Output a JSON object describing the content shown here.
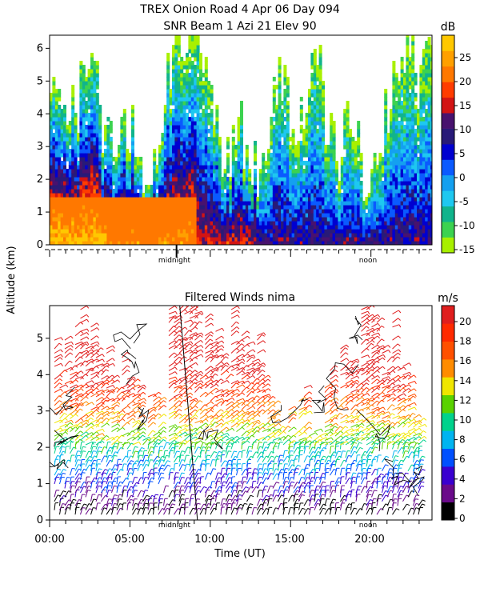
{
  "header": {
    "line1": "TREX Onion Road   4 Apr 06 Day 094",
    "line2": "SNR Beam 1 Azi  21 Elev 90"
  },
  "shared": {
    "ylabel": "Altitude (km)",
    "xlabel": "Time (UT)",
    "x_tick_labels": [
      "00:00",
      "05:00",
      "10:00",
      "15:00",
      "20:00"
    ],
    "marker_midnight": "midnight",
    "marker_noon": "noon"
  },
  "chart_data": [
    {
      "type": "heatmap",
      "title": "SNR Beam 1 Azi  21 Elev 90",
      "xlabel": "Time (UT)",
      "ylabel": "Altitude (km)",
      "xlim_hours": [
        0,
        23.8
      ],
      "ylim_km": [
        0,
        6.4
      ],
      "y_ticks": [
        "0",
        "1",
        "2",
        "3",
        "4",
        "5",
        "6"
      ],
      "colorbar": {
        "unit": "dB",
        "ticks": [
          "25",
          "20",
          "15",
          "10",
          "5",
          "0",
          "-5",
          "-10",
          "-15"
        ],
        "colors": [
          "#a8f000",
          "#3cd250",
          "#10b48c",
          "#1ec8f0",
          "#14a0f0",
          "#0a5aff",
          "#0000d0",
          "#281a78",
          "#48126e",
          "#d21414",
          "#ff3c00",
          "#ff7800",
          "#ffa000",
          "#ffc800"
        ]
      },
      "annotations": [
        "midnight",
        "noon"
      ]
    },
    {
      "type": "scatter",
      "subtype": "wind-barbs",
      "title": "Filtered Winds nima",
      "xlabel": "Time (UT)",
      "ylabel": "Altitude (km)",
      "xlim_hours": [
        0,
        23.8
      ],
      "ylim_km": [
        0,
        5.9
      ],
      "x_ticks": [
        "00:00",
        "05:00",
        "10:00",
        "15:00",
        "20:00"
      ],
      "y_ticks": [
        "0",
        "1",
        "2",
        "3",
        "4",
        "5"
      ],
      "colorbar": {
        "unit": "m/s",
        "ticks": [
          "20",
          "18",
          "16",
          "14",
          "12",
          "10",
          "8",
          "6",
          "4",
          "2",
          "0"
        ],
        "colors": [
          "#000000",
          "#6a0a8a",
          "#3a00d0",
          "#0050ff",
          "#00b4f0",
          "#00d28c",
          "#5ad200",
          "#f0e600",
          "#ff8c00",
          "#ff5000",
          "#ff2a00",
          "#e01e1e"
        ]
      },
      "annotations": [
        "midnight",
        "noon"
      ]
    }
  ]
}
